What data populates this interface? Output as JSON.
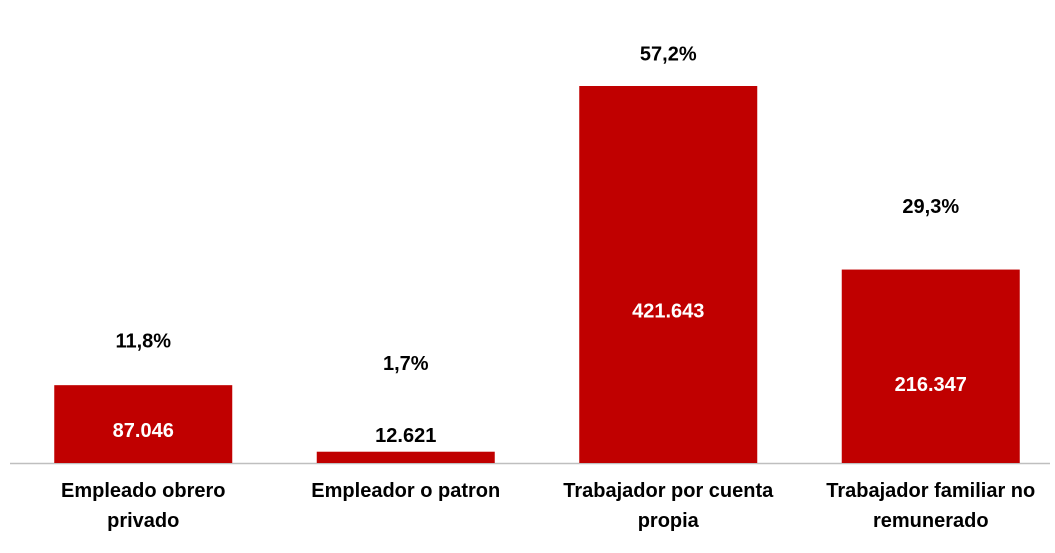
{
  "chart_data": {
    "type": "bar",
    "categories": [
      "Empleado obrero privado",
      "Empleador o patron",
      "Trabajador por cuenta propia",
      "Trabajador familiar no remunerado"
    ],
    "values": [
      87046,
      12621,
      421643,
      216347
    ],
    "value_labels": [
      "87.046",
      "12.621",
      "421.643",
      "216.347"
    ],
    "shares": [
      11.8,
      1.7,
      57.2,
      29.3
    ],
    "share_labels": [
      "11,8%",
      "1,7%",
      "57,2%",
      "29,3%"
    ],
    "color": "#c00000"
  }
}
